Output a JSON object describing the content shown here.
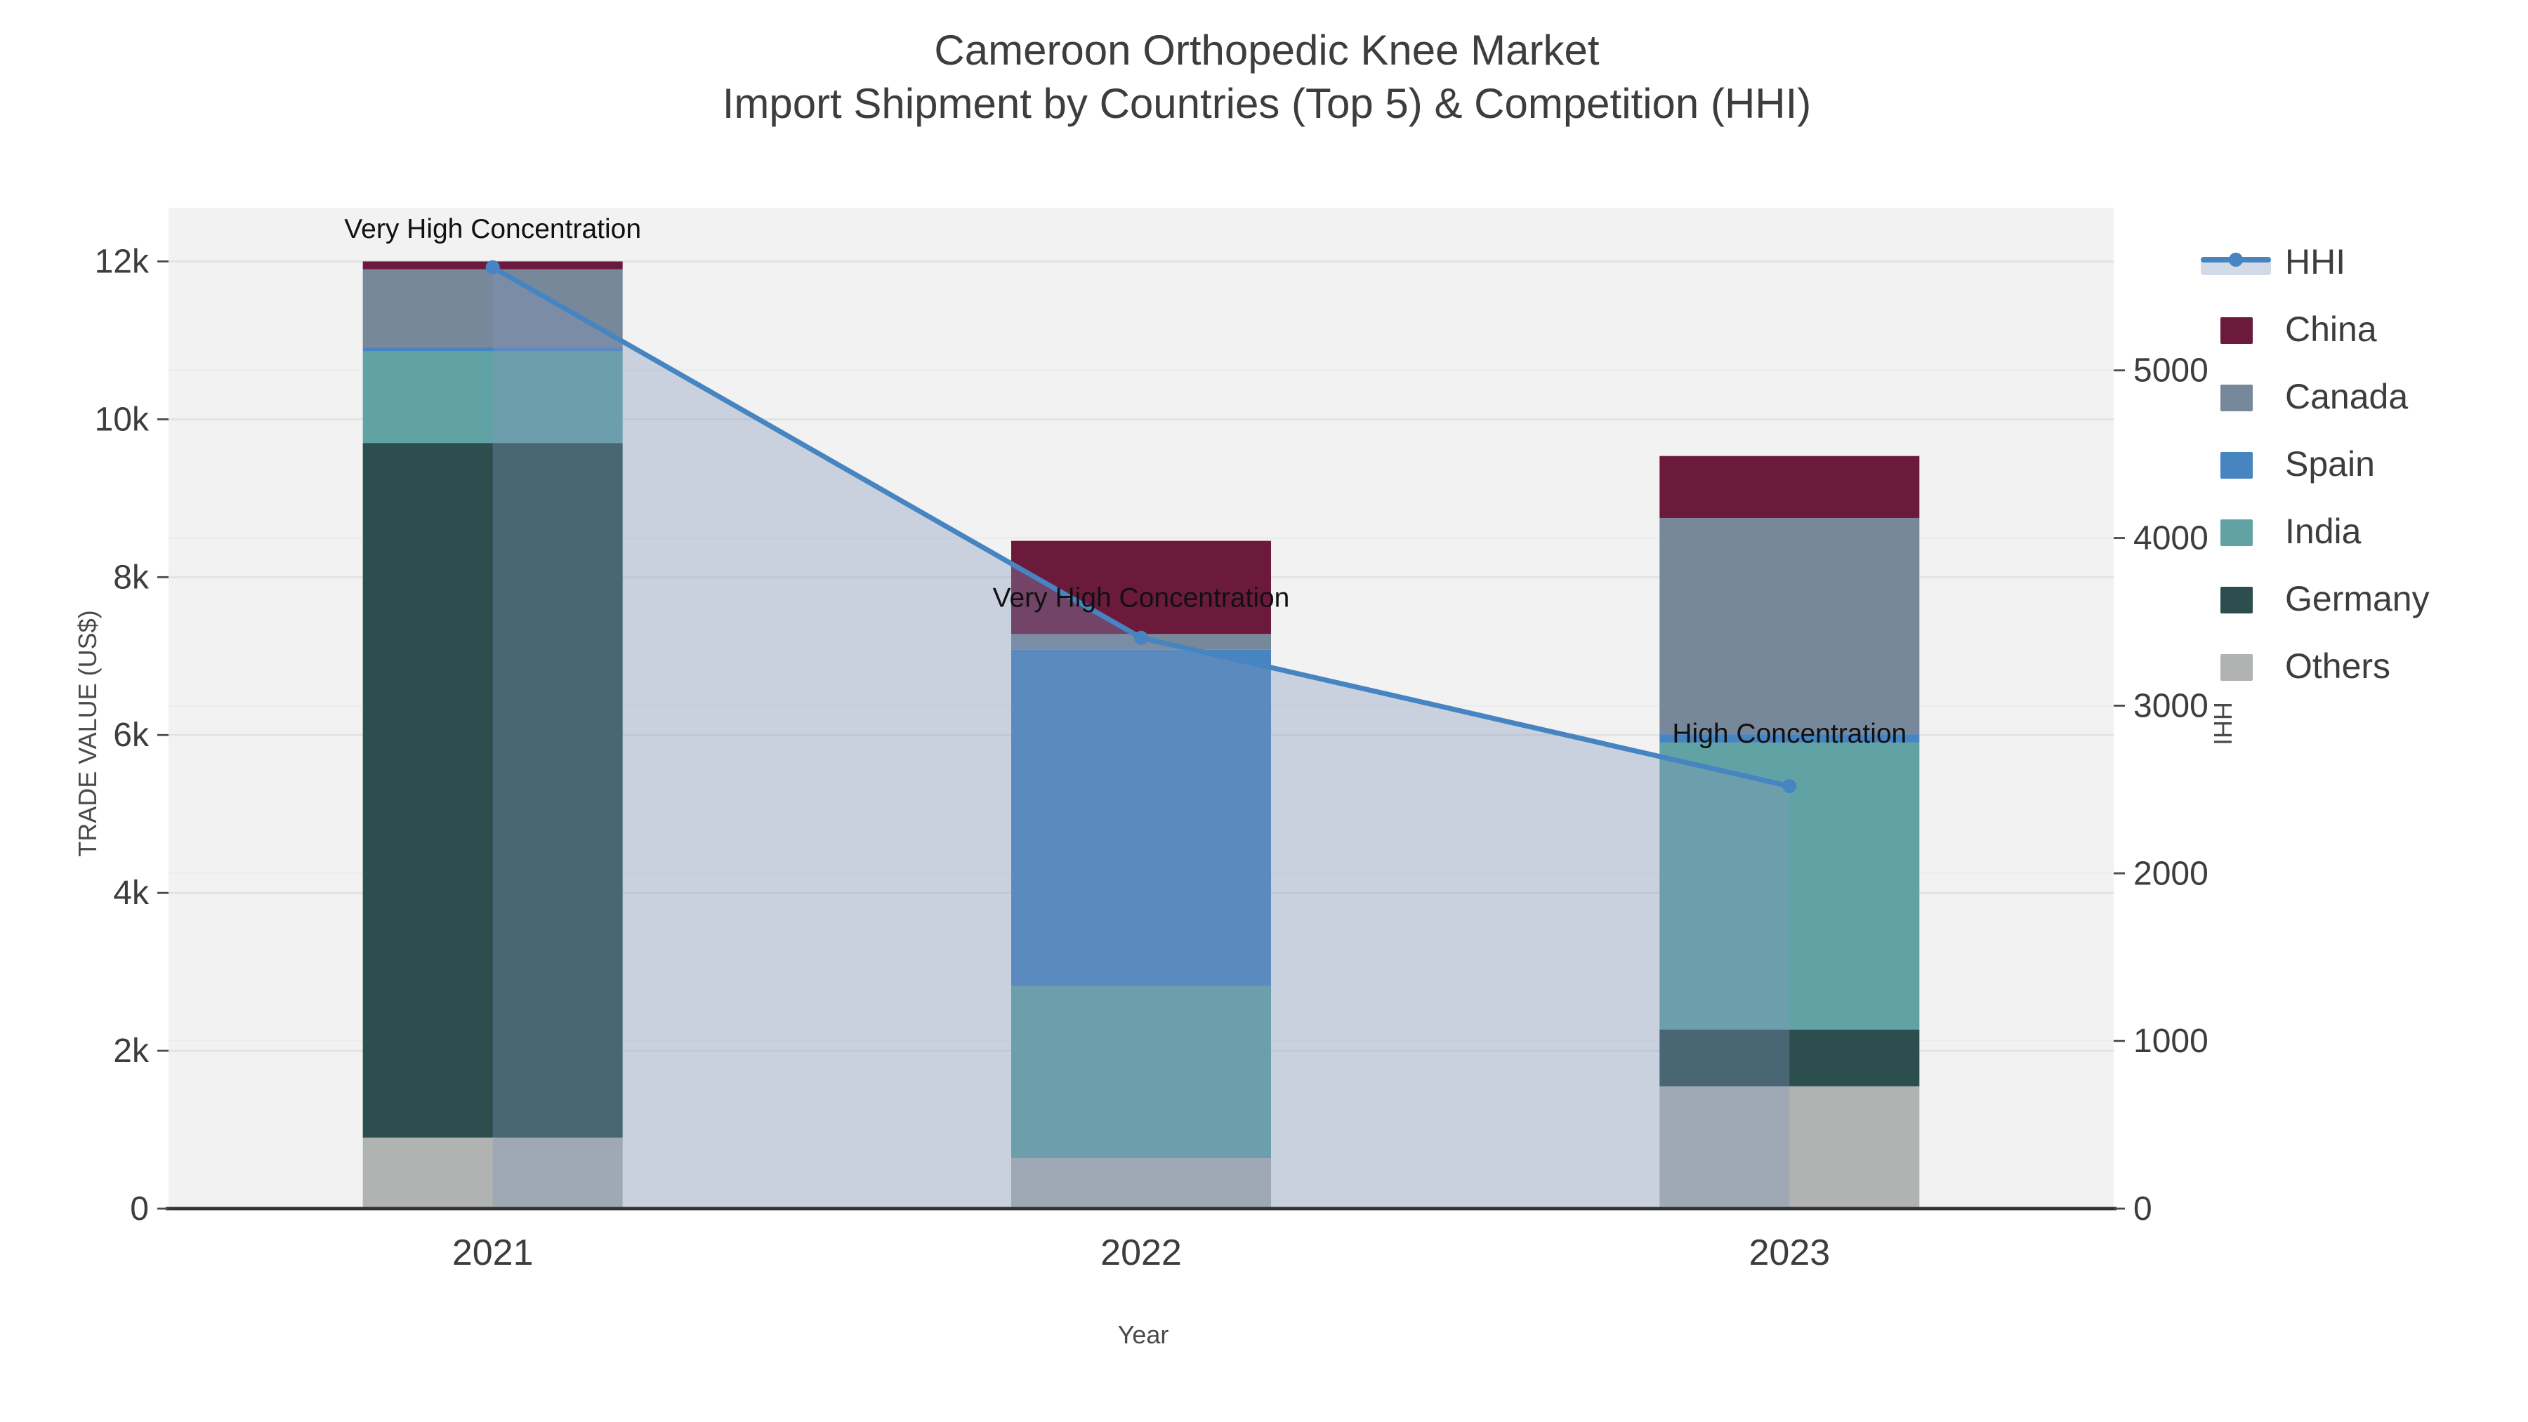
{
  "title": {
    "line1": "Cameroon Orthopedic Knee Market",
    "line2": "Import Shipment by Countries (Top 5) & Competition (HHI)"
  },
  "axes": {
    "x": {
      "title": "Year",
      "categories": [
        "2021",
        "2022",
        "2023"
      ]
    },
    "y_left": {
      "title": "TRADE VALUE (US$)",
      "tick_labels": [
        "0",
        "2k",
        "4k",
        "6k",
        "8k",
        "10k",
        "12k"
      ],
      "tick_values": [
        0,
        2000,
        4000,
        6000,
        8000,
        10000,
        12000
      ],
      "range": [
        0,
        12680
      ]
    },
    "y_right": {
      "title": "HHI",
      "tick_labels": [
        "0",
        "1000",
        "2000",
        "3000",
        "4000",
        "5000"
      ],
      "tick_values": [
        0,
        1000,
        2000,
        3000,
        4000,
        5000
      ],
      "range": [
        0,
        5970
      ]
    }
  },
  "legend": [
    {
      "label": "HHI",
      "type": "line",
      "color": "#4685c1"
    },
    {
      "label": "China",
      "type": "swatch",
      "color": "#6b1a3c"
    },
    {
      "label": "Canada",
      "type": "swatch",
      "color": "#78889b"
    },
    {
      "label": "Spain",
      "type": "swatch",
      "color": "#4785c1"
    },
    {
      "label": "India",
      "type": "swatch",
      "color": "#61a3a4"
    },
    {
      "label": "Germany",
      "type": "swatch",
      "color": "#2c4e4f"
    },
    {
      "label": "Others",
      "type": "swatch",
      "color": "#b0b3b2"
    }
  ],
  "chart_data": {
    "type": "combo-stacked-bar-with-line",
    "title": "Cameroon Orthopedic Knee Market — Import Shipment by Countries (Top 5) & Competition (HHI)",
    "categories": [
      "2021",
      "2022",
      "2023"
    ],
    "bar_axis": "left",
    "xlabel": "Year",
    "ylabel_left": "TRADE VALUE (US$)",
    "ylabel_right": "HHI",
    "ylim_left": [
      0,
      12680
    ],
    "ylim_right": [
      0,
      5970
    ],
    "grid": "on",
    "legend_position": "right",
    "series": [
      {
        "name": "Others",
        "color": "#b0b3b2",
        "values": [
          900,
          640,
          1550
        ]
      },
      {
        "name": "Germany",
        "color": "#2c4e4f",
        "values": [
          8800,
          0,
          720
        ]
      },
      {
        "name": "India",
        "color": "#61a3a4",
        "values": [
          1160,
          2180,
          3635
        ]
      },
      {
        "name": "Spain",
        "color": "#4785c1",
        "values": [
          50,
          4260,
          105
        ]
      },
      {
        "name": "Canada",
        "color": "#78889b",
        "values": [
          990,
          200,
          2740
        ]
      },
      {
        "name": "China",
        "color": "#6b1a3c",
        "values": [
          100,
          1180,
          785
        ]
      }
    ],
    "bar_totals": [
      12000,
      8460,
      9535
    ],
    "line_series": {
      "name": "HHI",
      "axis": "right",
      "color": "#4685c1",
      "fill_color": "rgba(130,150,185,0.35)",
      "marker": "circle",
      "values": [
        5615,
        3405,
        2520
      ]
    },
    "annotations": [
      {
        "category": "2021",
        "text": "Very High Concentration",
        "dy": -21
      },
      {
        "category": "2022",
        "text": "Very High Concentration",
        "dy": -22
      },
      {
        "category": "2023",
        "text": "High Concentration",
        "dy": -31
      }
    ],
    "colors": {
      "plot_background": "#f2f2f2",
      "page_background": "#ffffff",
      "gridline_major": "#e3e3e3",
      "gridline_minor": "#ececec",
      "axis_line": "#333333",
      "tick_text": "#3d3d3d",
      "annotation_text": "#111111"
    }
  }
}
